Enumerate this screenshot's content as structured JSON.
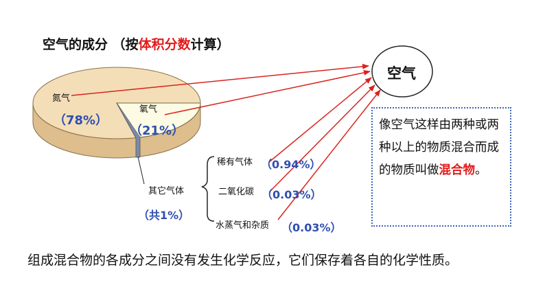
{
  "title": {
    "prefix": "空气的成分 （按",
    "highlight": "体积分数",
    "suffix": "计算）"
  },
  "pie": {
    "nitrogen": {
      "label": "氮气",
      "percent": "（78%）"
    },
    "oxygen": {
      "label": "氧气",
      "percent": "（21%）"
    },
    "others": {
      "label": "其它气体",
      "percent": "（共1%）"
    }
  },
  "others_breakdown": [
    {
      "label": "稀有气体",
      "percent": "（0.94%）"
    },
    {
      "label": "二氧化碳",
      "percent": "（0.03%）"
    },
    {
      "label": "水蒸气和杂质",
      "percent": "（0.03%）"
    }
  ],
  "air_label": "空气",
  "definition": {
    "text": "像空气这样由两种或两种以上的物质混合而成的物质叫做",
    "highlight": "混合物",
    "end": "。"
  },
  "bottom_text": "组成混合物的各成分之间没有发生化学反应，它们保存着各自的化学性质。",
  "chart_data": {
    "type": "pie",
    "categories": [
      "氮气",
      "氧气",
      "其它气体"
    ],
    "values": [
      78,
      21,
      1
    ]
  },
  "colors": {
    "pie_top": "#f4deb8",
    "pie_side": "#ddbe8c",
    "oxygen_top": "#fdfbe3",
    "arrow": "#d9231e",
    "note_border": "#3b63b5"
  }
}
